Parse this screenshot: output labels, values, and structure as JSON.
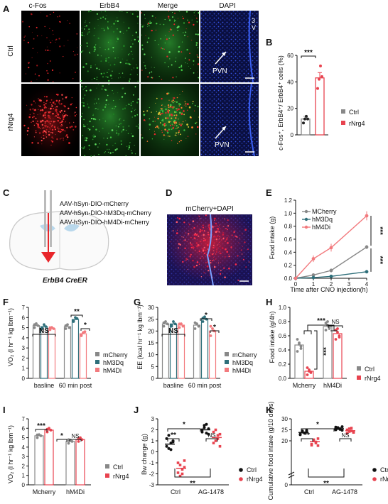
{
  "panels": {
    "A": {
      "letter": "A",
      "columns": [
        "c-Fos",
        "ErbB4",
        "Merge",
        "DAPI"
      ],
      "rows": [
        "Ctrl",
        "rNrg4"
      ],
      "pvn_label": "PVN",
      "ventricle_label": "3\nV",
      "colors": {
        "cfos": "#e8262b",
        "erbb4": "#3fbf3f",
        "dapi": "#2c4dd8",
        "bg": "#000000"
      }
    },
    "B": {
      "letter": "B",
      "ylabel": "c-Fos⁺, ErbB4⁺/ ErbB4⁺ cells (%)",
      "legend": [
        "Ctrl",
        "rNrg4"
      ],
      "sig": "***"
    },
    "C": {
      "letter": "C",
      "viruses": [
        "AAV-hSyn-DIO-mCherry",
        "AAV-hSyn-DIO-hM3Dq-mCherry",
        "AAV-hSyn-DIO-hM4Di-mCherry"
      ],
      "mouse_line": "ErbB4 CreER"
    },
    "D": {
      "letter": "D",
      "title": "mCherry+DAPI"
    },
    "E": {
      "letter": "E",
      "ylabel": "Food intake (g)",
      "xlabel": "Time after CNO injection(h)",
      "legend": [
        "MCherry",
        "hM3Dq",
        "hM4Di"
      ],
      "sig": [
        "***",
        "***"
      ]
    },
    "F": {
      "letter": "F",
      "ylabel": "VO₂ (l hr⁻¹ kg lbm⁻¹)",
      "groups": [
        "basline",
        "60 min post"
      ],
      "legend": [
        "mCherry",
        "hM3Dq",
        "hM4Di"
      ],
      "sig": [
        "NS",
        "**",
        "*"
      ]
    },
    "G": {
      "letter": "G",
      "ylabel": "EE (kcal hr⁻¹ kg lbm⁻¹)",
      "groups": [
        "basline",
        "60 min post"
      ],
      "legend": [
        "mCherry",
        "hM3Dq",
        "hM4Di"
      ],
      "sig": [
        "NS",
        "*",
        "*"
      ]
    },
    "H": {
      "letter": "H",
      "ylabel": "Food intake (g/4h)",
      "groups": [
        "Mcherry",
        "hM4Di"
      ],
      "legend": [
        "Ctrl",
        "rNrg4"
      ],
      "sig": [
        "***",
        "***",
        "NS"
      ]
    },
    "I": {
      "letter": "I",
      "ylabel": "VO₂ (l hr⁻¹ kg lbm⁻¹)",
      "groups": [
        "Mcherry",
        "hM4Di"
      ],
      "legend": [
        "Ctrl",
        "rNrg4"
      ],
      "sig": [
        "***",
        "*",
        "NS"
      ]
    },
    "J": {
      "letter": "J",
      "ylabel": "Bw change (g)",
      "groups": [
        "Ctrl",
        "AG-1478"
      ],
      "legend": [
        "Ctrl",
        "rNrg4"
      ],
      "sig": [
        "*",
        "**",
        "NS",
        "**"
      ]
    },
    "K": {
      "letter": "K",
      "ylabel": "Cumulative food intake (g/10 days)",
      "groups": [
        "Ctrl",
        "AG-1478"
      ],
      "legend": [
        "Ctrl",
        "rNrg4"
      ],
      "sig": [
        "*",
        "**",
        "NS",
        "**"
      ]
    }
  },
  "chart_data": [
    {
      "panel": "B",
      "type": "bar",
      "categories": [
        "Ctrl",
        "rNrg4"
      ],
      "values": [
        12,
        43
      ],
      "errors": [
        2,
        4
      ],
      "points": [
        [
          9,
          12,
          14,
          12
        ],
        [
          35,
          42,
          52,
          44
        ]
      ],
      "ylim": [
        0,
        60
      ],
      "yticks": [
        0,
        20,
        40,
        60
      ],
      "colors": [
        "#888888",
        "#e8434f"
      ]
    },
    {
      "panel": "E",
      "type": "line",
      "x": [
        0,
        1,
        2,
        4
      ],
      "xticks": [
        0,
        1,
        2,
        3,
        4
      ],
      "ylim": [
        0,
        1.2
      ],
      "yticks": [
        0,
        0.2,
        0.4,
        0.6,
        0.8,
        1.0,
        1.2
      ],
      "series": [
        {
          "name": "MCherry",
          "values": [
            0,
            0.05,
            0.12,
            0.48
          ],
          "errors": [
            0,
            0.02,
            0.03,
            0.03
          ],
          "color": "#888888"
        },
        {
          "name": "hM3Dq",
          "values": [
            0,
            0.01,
            0.03,
            0.1
          ],
          "errors": [
            0,
            0.01,
            0.01,
            0.02
          ],
          "color": "#2e6f7a"
        },
        {
          "name": "hM4Di",
          "values": [
            0,
            0.3,
            0.47,
            0.96
          ],
          "errors": [
            0,
            0.05,
            0.06,
            0.07
          ],
          "color": "#f27a7e"
        }
      ]
    },
    {
      "panel": "F",
      "type": "bar",
      "categories": [
        "basline",
        "60 min post"
      ],
      "ylim": [
        0,
        7
      ],
      "yticks": [
        0,
        1,
        2,
        3,
        4,
        5,
        6,
        7
      ],
      "series": [
        {
          "name": "mCherry",
          "values": [
            5.2,
            5.1
          ],
          "points": [
            [
              5.0,
              5.4,
              5.2,
              5.3
            ],
            [
              4.9,
              5.3,
              5.0,
              5.2
            ]
          ],
          "color": "#888888"
        },
        {
          "name": "hM3Dq",
          "values": [
            5.1,
            5.8
          ],
          "points": [
            [
              5.0,
              5.3,
              5.1,
              4.9
            ],
            [
              5.6,
              6.0,
              5.9,
              5.7
            ]
          ],
          "color": "#2e6f7a"
        },
        {
          "name": "hM4Di",
          "values": [
            4.9,
            4.4
          ],
          "points": [
            [
              4.8,
              5.0,
              4.9,
              5.0
            ],
            [
              4.2,
              4.5,
              4.6,
              4.3
            ]
          ],
          "color": "#f27a7e"
        }
      ]
    },
    {
      "panel": "G",
      "type": "bar",
      "categories": [
        "basline",
        "60 min post"
      ],
      "ylim": [
        0,
        30
      ],
      "yticks": [
        0,
        5,
        10,
        15,
        20,
        25,
        30
      ],
      "series": [
        {
          "name": "mCherry",
          "values": [
            23,
            22.5
          ],
          "points": [
            [
              22,
              24,
              23,
              23.5
            ],
            [
              21,
              23,
              22,
              23.5
            ]
          ],
          "color": "#888888"
        },
        {
          "name": "hM3Dq",
          "values": [
            23,
            25
          ],
          "points": [
            [
              22,
              24,
              23,
              22.5
            ],
            [
              24,
              26,
              25,
              25.5
            ]
          ],
          "color": "#2e6f7a"
        },
        {
          "name": "hM4Di",
          "values": [
            22.5,
            20
          ],
          "points": [
            [
              21.5,
              23,
              22,
              23
            ],
            [
              18,
              21,
              20,
              22
            ]
          ],
          "color": "#f27a7e"
        }
      ]
    },
    {
      "panel": "H",
      "type": "bar",
      "categories": [
        "Mcherry",
        "hM4Di"
      ],
      "ylim": [
        0,
        1.0
      ],
      "yticks": [
        0,
        0.2,
        0.4,
        0.6,
        0.8,
        1.0
      ],
      "series": [
        {
          "name": "Ctrl",
          "values": [
            0.47,
            0.73
          ],
          "points": [
            [
              0.38,
              0.5,
              0.42,
              0.55,
              0.48,
              0.45
            ],
            [
              0.68,
              0.8,
              0.72,
              0.78,
              0.75,
              0.7
            ]
          ],
          "color": "#888888"
        },
        {
          "name": "rNrg4",
          "values": [
            0.1,
            0.63
          ],
          "points": [
            [
              0.05,
              0.12,
              0.08,
              0.15,
              0.1,
              0.09
            ],
            [
              0.55,
              0.7,
              0.6,
              0.68,
              0.65,
              0.58
            ]
          ],
          "color": "#e8434f"
        }
      ]
    },
    {
      "panel": "I",
      "type": "bar",
      "categories": [
        "Mcherry",
        "hM4Di"
      ],
      "ylim": [
        0,
        7
      ],
      "yticks": [
        0,
        1,
        2,
        3,
        4,
        5,
        6,
        7
      ],
      "series": [
        {
          "name": "Ctrl",
          "values": [
            5.2,
            4.6
          ],
          "points": [
            [
              5.0,
              5.3,
              5.2,
              5.3
            ],
            [
              4.4,
              4.7,
              4.6,
              4.8
            ]
          ],
          "color": "#888888"
        },
        {
          "name": "rNrg4",
          "values": [
            5.8,
            4.8
          ],
          "points": [
            [
              5.6,
              6.0,
              5.8,
              5.9
            ],
            [
              4.6,
              5.0,
              4.8,
              4.9
            ]
          ],
          "color": "#e8434f"
        }
      ]
    },
    {
      "panel": "J",
      "type": "scatter",
      "categories": [
        "Ctrl",
        "AG-1478"
      ],
      "ylim": [
        -3,
        3
      ],
      "yticks": [
        -3,
        -2,
        -1,
        0,
        1,
        2,
        3
      ],
      "series": [
        {
          "name": "Ctrl",
          "values": [
            0.7,
            2.0
          ],
          "points": [
            [
              1.2,
              0.3,
              0.8,
              0.9,
              0.5,
              1.5,
              0.2,
              1.0
            ],
            [
              1.8,
              2.2,
              2.5,
              1.6,
              2.0,
              2.4,
              1.7,
              2.1
            ]
          ],
          "color": "#111111"
        },
        {
          "name": "rNrg4",
          "values": [
            -1.5,
            1.3
          ],
          "points": [
            [
              -1.0,
              -2.2,
              -1.6,
              -0.8,
              -1.9,
              -1.2,
              -2.0,
              -1.4
            ],
            [
              0.8,
              2.0,
              1.5,
              0.5,
              1.8,
              1.0,
              1.2,
              1.6
            ]
          ],
          "color": "#e8434f"
        }
      ]
    },
    {
      "panel": "K",
      "type": "scatter",
      "categories": [
        "Ctrl",
        "AG-1478"
      ],
      "ylim": [
        0,
        30
      ],
      "yticks": [
        0,
        20,
        25,
        30
      ],
      "axis_break": true,
      "series": [
        {
          "name": "Ctrl",
          "values": [
            23.8,
            25.5
          ],
          "points": [
            [
              23.0,
              24.5,
              23.5,
              24.2,
              22.8,
              24.0,
              23.6,
              24.8
            ],
            [
              25.0,
              26.0,
              25.5,
              24.8,
              26.2,
              25.6,
              25.2,
              26.4
            ]
          ],
          "color": "#111111"
        },
        {
          "name": "rNrg4",
          "values": [
            19.6,
            24.6
          ],
          "points": [
            [
              18.0,
              20.5,
              19.0,
              21.0,
              18.5,
              20.0,
              19.5,
              17.8
            ],
            [
              23.5,
              25.5,
              24.5,
              23.8,
              25.0,
              24.2,
              25.8,
              24.0
            ]
          ],
          "color": "#e8434f"
        }
      ]
    }
  ]
}
